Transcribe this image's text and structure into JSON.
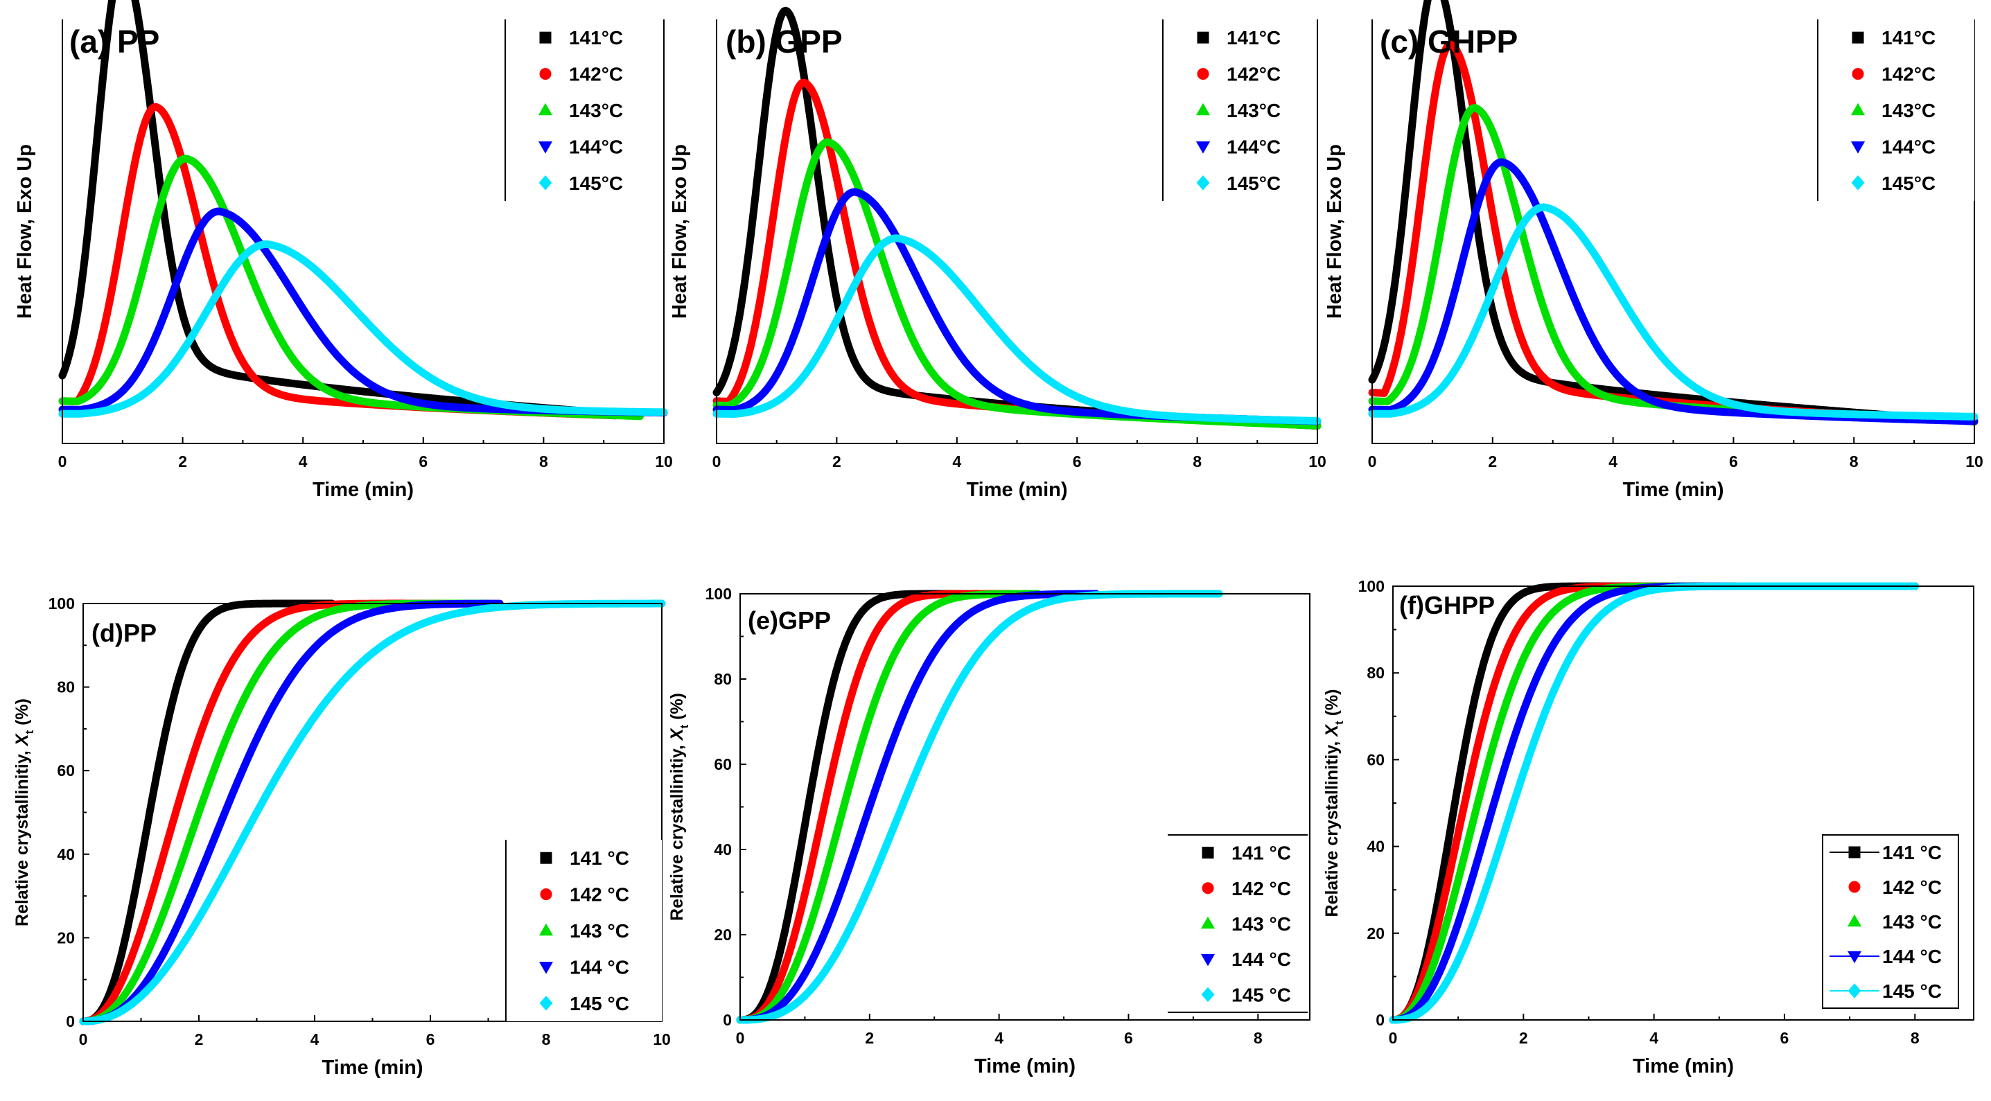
{
  "chart_data": [
    {
      "id": "a",
      "type": "line",
      "label": "(a) PP",
      "xlabel": "Time (min)",
      "ylabel": "Heat Flow, Exo Up",
      "xlim": [
        0,
        10
      ],
      "ylim": [
        0,
        1
      ],
      "xticks": [
        "0",
        "2",
        "4",
        "6",
        "8",
        "10"
      ],
      "yticks": [],
      "legend_placement": "top-right",
      "series": [
        {
          "name": "141°C",
          "color": "#000000",
          "marker": "square",
          "base_start": 0.16,
          "base_end": 0.06,
          "t0": 0.0,
          "peak_time": 1.0,
          "peak": 0.98,
          "rise_width": 0.42,
          "decay_width": 0.5,
          "decay_tail": 0.06,
          "x_end": 9.2
        },
        {
          "name": "142°C",
          "color": "#ff0000",
          "marker": "circle",
          "base_start": 0.1,
          "base_end": 0.06,
          "t0": 0.25,
          "peak_time": 1.55,
          "peak": 0.7,
          "rise_width": 0.55,
          "decay_width": 0.7,
          "decay_tail": 0.07,
          "x_end": 9.2
        },
        {
          "name": "143°C",
          "color": "#00e000",
          "marker": "triangle-up",
          "base_start": 0.1,
          "base_end": 0.06,
          "t0": 0.25,
          "peak_time": 2.05,
          "peak": 0.58,
          "rise_width": 0.65,
          "decay_width": 0.95,
          "decay_tail": 0.08,
          "x_end": 9.6
        },
        {
          "name": "144°C",
          "color": "#0000ff",
          "marker": "triangle-down",
          "base_start": 0.08,
          "base_end": 0.07,
          "t0": 0.3,
          "peak_time": 2.6,
          "peak": 0.47,
          "rise_width": 0.75,
          "decay_width": 1.2,
          "decay_tail": 0.1,
          "x_end": 10
        },
        {
          "name": "145°C",
          "color": "#00e5ff",
          "marker": "diamond",
          "base_start": 0.07,
          "base_end": 0.07,
          "t0": 0.3,
          "peak_time": 3.4,
          "peak": 0.4,
          "rise_width": 1.0,
          "decay_width": 1.5,
          "decay_tail": 0.12,
          "x_end": 10
        }
      ]
    },
    {
      "id": "b",
      "type": "line",
      "label": "(b) GPP",
      "xlabel": "Time (min)",
      "ylabel": "Heat Flow, Exo Up",
      "xlim": [
        0,
        10
      ],
      "ylim": [
        0,
        1
      ],
      "xticks": [
        "0",
        "2",
        "4",
        "6",
        "8",
        "10"
      ],
      "yticks": [],
      "legend_placement": "top-right",
      "series": [
        {
          "name": "141°C",
          "color": "#000000",
          "marker": "square",
          "base_start": 0.12,
          "base_end": 0.04,
          "t0": 0.0,
          "peak_time": 1.15,
          "peak": 0.91,
          "rise_width": 0.45,
          "decay_width": 0.5,
          "decay_tail": 0.05,
          "x_end": 10
        },
        {
          "name": "142°C",
          "color": "#ff0000",
          "marker": "circle",
          "base_start": 0.1,
          "base_end": 0.04,
          "t0": 0.2,
          "peak_time": 1.45,
          "peak": 0.76,
          "rise_width": 0.5,
          "decay_width": 0.65,
          "decay_tail": 0.06,
          "x_end": 10
        },
        {
          "name": "143°C",
          "color": "#00e000",
          "marker": "triangle-up",
          "base_start": 0.09,
          "base_end": 0.04,
          "t0": 0.2,
          "peak_time": 1.85,
          "peak": 0.63,
          "rise_width": 0.6,
          "decay_width": 0.85,
          "decay_tail": 0.07,
          "x_end": 10
        },
        {
          "name": "144°C",
          "color": "#0000ff",
          "marker": "triangle-down",
          "base_start": 0.08,
          "base_end": 0.05,
          "t0": 0.3,
          "peak_time": 2.3,
          "peak": 0.52,
          "rise_width": 0.7,
          "decay_width": 1.05,
          "decay_tail": 0.09,
          "x_end": 10
        },
        {
          "name": "145°C",
          "color": "#00e5ff",
          "marker": "diamond",
          "base_start": 0.07,
          "base_end": 0.05,
          "t0": 0.3,
          "peak_time": 3.0,
          "peak": 0.42,
          "rise_width": 0.9,
          "decay_width": 1.4,
          "decay_tail": 0.11,
          "x_end": 10
        }
      ]
    },
    {
      "id": "c",
      "type": "line",
      "label": "(c) GHPP",
      "xlabel": "Time (min)",
      "ylabel": "Heat Flow, Exo Up",
      "xlim": [
        0,
        10
      ],
      "ylim": [
        0,
        1
      ],
      "xticks": [
        "0",
        "2",
        "4",
        "6",
        "8",
        "10"
      ],
      "yticks": [],
      "legend_placement": "top-right",
      "series": [
        {
          "name": "141°C",
          "color": "#000000",
          "marker": "square",
          "base_start": 0.15,
          "base_end": 0.05,
          "t0": 0.0,
          "peak_time": 1.05,
          "peak": 0.95,
          "rise_width": 0.42,
          "decay_width": 0.5,
          "decay_tail": 0.05,
          "x_end": 10
        },
        {
          "name": "142°C",
          "color": "#ff0000",
          "marker": "circle",
          "base_start": 0.12,
          "base_end": 0.05,
          "t0": 0.2,
          "peak_time": 1.3,
          "peak": 0.83,
          "rise_width": 0.48,
          "decay_width": 0.6,
          "decay_tail": 0.06,
          "x_end": 10
        },
        {
          "name": "143°C",
          "color": "#00e000",
          "marker": "triangle-up",
          "base_start": 0.1,
          "base_end": 0.05,
          "t0": 0.25,
          "peak_time": 1.7,
          "peak": 0.7,
          "rise_width": 0.55,
          "decay_width": 0.75,
          "decay_tail": 0.07,
          "x_end": 10
        },
        {
          "name": "144°C",
          "color": "#0000ff",
          "marker": "triangle-down",
          "base_start": 0.08,
          "base_end": 0.05,
          "t0": 0.3,
          "peak_time": 2.15,
          "peak": 0.59,
          "rise_width": 0.65,
          "decay_width": 0.95,
          "decay_tail": 0.08,
          "x_end": 10
        },
        {
          "name": "145°C",
          "color": "#00e5ff",
          "marker": "diamond",
          "base_start": 0.07,
          "base_end": 0.06,
          "t0": 0.3,
          "peak_time": 2.85,
          "peak": 0.49,
          "rise_width": 0.85,
          "decay_width": 1.2,
          "decay_tail": 0.1,
          "x_end": 10
        }
      ]
    },
    {
      "id": "d",
      "type": "line",
      "label": "(d)PP",
      "xlabel": "Time (min)",
      "ylabel_main": "Relative crystallinitiy, ",
      "ylabel_var": "X",
      "ylabel_sub": "t",
      "ylabel_unit": " (%)",
      "xlim": [
        0,
        10
      ],
      "ylim": [
        0,
        100
      ],
      "xticks": [
        "0",
        "2",
        "4",
        "6",
        "8",
        "10"
      ],
      "yticks": [
        "0",
        "20",
        "40",
        "60",
        "80",
        "100"
      ],
      "legend_placement": "bottom-right",
      "series": [
        {
          "name": "141 °C",
          "color": "#000000",
          "marker": "square",
          "t_half": 1.15,
          "n": 2.5,
          "x_end": 4.3
        },
        {
          "name": "142 °C",
          "color": "#ff0000",
          "marker": "circle",
          "t_half": 1.6,
          "n": 2.2,
          "x_end": 6.6
        },
        {
          "name": "143 °C",
          "color": "#00e000",
          "marker": "triangle-up",
          "t_half": 2.0,
          "n": 2.3,
          "x_end": 7.0
        },
        {
          "name": "144 °C",
          "color": "#0000ff",
          "marker": "triangle-down",
          "t_half": 2.45,
          "n": 2.4,
          "x_end": 7.2
        },
        {
          "name": "145 °C",
          "color": "#00e5ff",
          "marker": "diamond",
          "t_half": 3.0,
          "n": 2.2,
          "x_end": 10
        }
      ]
    },
    {
      "id": "e",
      "type": "line",
      "label": "(e)GPP",
      "xlabel": "Time (min)",
      "ylabel_main": "Relative crystallinitiy, ",
      "ylabel_var": "X",
      "ylabel_sub": "t",
      "ylabel_unit": " (%)",
      "xlim": [
        0,
        8.8
      ],
      "ylim": [
        0,
        100
      ],
      "xticks": [
        "0",
        "2",
        "4",
        "6",
        "8"
      ],
      "yticks": [
        "0",
        "20",
        "40",
        "60",
        "80",
        "100"
      ],
      "legend_placement": "bottom-right",
      "series": [
        {
          "name": "141 °C",
          "color": "#000000",
          "marker": "square",
          "t_half": 1.05,
          "n": 2.6,
          "x_end": 3.5
        },
        {
          "name": "142 °C",
          "color": "#ff0000",
          "marker": "circle",
          "t_half": 1.3,
          "n": 2.6,
          "x_end": 4.2
        },
        {
          "name": "143 °C",
          "color": "#00e000",
          "marker": "triangle-up",
          "t_half": 1.6,
          "n": 2.6,
          "x_end": 4.6
        },
        {
          "name": "144 °C",
          "color": "#0000ff",
          "marker": "triangle-down",
          "t_half": 2.0,
          "n": 2.6,
          "x_end": 5.5
        },
        {
          "name": "145 °C",
          "color": "#00e5ff",
          "marker": "diamond",
          "t_half": 2.5,
          "n": 2.7,
          "x_end": 7.4
        }
      ]
    },
    {
      "id": "f",
      "type": "line",
      "label": "(f)GHPP",
      "xlabel": "Time (min)",
      "ylabel_main": "Relative crystallinitiy, ",
      "ylabel_var": "X",
      "ylabel_sub": "t",
      "ylabel_unit": " (%)",
      "xlim": [
        0,
        8.9
      ],
      "ylim": [
        0,
        100
      ],
      "xticks": [
        "0",
        "2",
        "4",
        "6",
        "8"
      ],
      "yticks": [
        "0",
        "20",
        "40",
        "60",
        "80",
        "100"
      ],
      "legend_placement": "bottom-right",
      "series": [
        {
          "name": "141 °C",
          "color": "#000000",
          "marker": "square",
          "t_half": 0.95,
          "n": 2.4,
          "x_end": 8.0
        },
        {
          "name": "142 °C",
          "color": "#ff0000",
          "marker": "circle",
          "t_half": 1.1,
          "n": 2.2,
          "x_end": 8.0
        },
        {
          "name": "143 °C",
          "color": "#00e000",
          "marker": "triangle-up",
          "t_half": 1.3,
          "n": 2.2,
          "x_end": 8.0
        },
        {
          "name": "144 °C",
          "color": "#0000ff",
          "marker": "triangle-down",
          "t_half": 1.55,
          "n": 2.3,
          "x_end": 8.0
        },
        {
          "name": "145 °C",
          "color": "#00e5ff",
          "marker": "diamond",
          "t_half": 1.85,
          "n": 2.5,
          "x_end": 8.0
        }
      ]
    }
  ]
}
